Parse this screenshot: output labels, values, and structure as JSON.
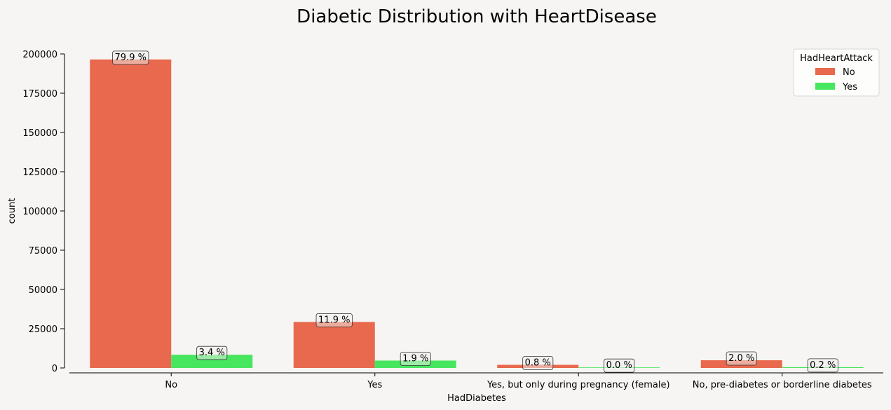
{
  "chart_data": {
    "type": "bar",
    "title": "Diabetic Distribution with HeartDisease",
    "xlabel": "HadDiabetes",
    "ylabel": "count",
    "ylim": [
      0,
      200000
    ],
    "yticks": [
      0,
      25000,
      50000,
      75000,
      100000,
      125000,
      150000,
      175000,
      200000
    ],
    "categories": [
      "No",
      "Yes",
      "Yes, but only during pregnancy (female)",
      "No, pre-diabetes or borderline diabetes"
    ],
    "series": [
      {
        "name": "No",
        "color": "#e8694d",
        "values": [
          196500,
          29300,
          2000,
          4900
        ],
        "labels": [
          "79.9 %",
          "11.9 %",
          "0.8 %",
          "2.0 %"
        ]
      },
      {
        "name": "Yes",
        "color": "#47e65f",
        "values": [
          8400,
          4700,
          50,
          500
        ],
        "labels": [
          "3.4 %",
          "1.9 %",
          "0.0 %",
          "0.2 %"
        ]
      }
    ],
    "legend": {
      "title": "HadHeartAttack",
      "position": "top-right"
    },
    "grid": false
  }
}
